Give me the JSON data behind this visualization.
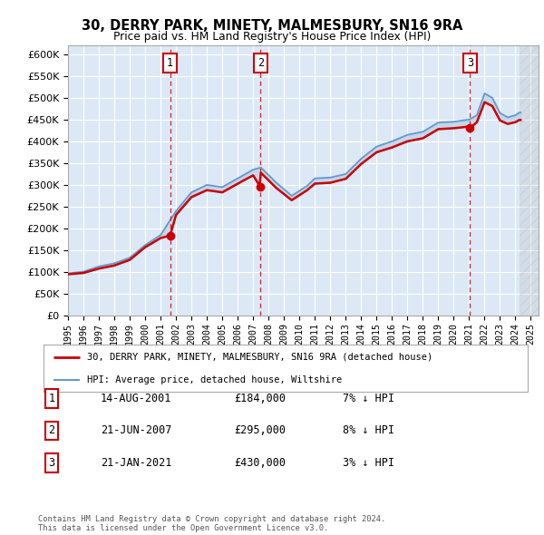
{
  "title": "30, DERRY PARK, MINETY, MALMESBURY, SN16 9RA",
  "subtitle": "Price paid vs. HM Land Registry's House Price Index (HPI)",
  "ylim": [
    0,
    620000
  ],
  "yticks": [
    0,
    50000,
    100000,
    150000,
    200000,
    250000,
    300000,
    350000,
    400000,
    450000,
    500000,
    550000,
    600000
  ],
  "background_color": "#ffffff",
  "plot_bg_color": "#dce8f5",
  "grid_color": "#ffffff",
  "transactions": [
    {
      "label": "1",
      "date": "14-AUG-2001",
      "price": 184000,
      "pct": "7%",
      "x_year": 2001.62
    },
    {
      "label": "2",
      "date": "21-JUN-2007",
      "price": 295000,
      "pct": "8%",
      "x_year": 2007.47
    },
    {
      "label": "3",
      "date": "21-JAN-2021",
      "price": 430000,
      "x_year": 2021.05,
      "pct": "3%"
    }
  ],
  "legend_entries": [
    {
      "label": "30, DERRY PARK, MINETY, MALMESBURY, SN16 9RA (detached house)",
      "color": "#cc0000",
      "lw": 2
    },
    {
      "label": "HPI: Average price, detached house, Wiltshire",
      "color": "#6699cc",
      "lw": 1.5
    }
  ],
  "footer": "Contains HM Land Registry data © Crown copyright and database right 2024.\nThis data is licensed under the Open Government Licence v3.0.",
  "table_rows": [
    {
      "num": "1",
      "date": "14-AUG-2001",
      "price": "£184,000",
      "pct": "7% ↓ HPI"
    },
    {
      "num": "2",
      "date": "21-JUN-2007",
      "price": "£295,000",
      "pct": "8% ↓ HPI"
    },
    {
      "num": "3",
      "date": "21-JAN-2021",
      "price": "£430,000",
      "pct": "3% ↓ HPI"
    }
  ],
  "xlim": [
    1995.0,
    2025.5
  ],
  "hatch_start": 2024.25
}
